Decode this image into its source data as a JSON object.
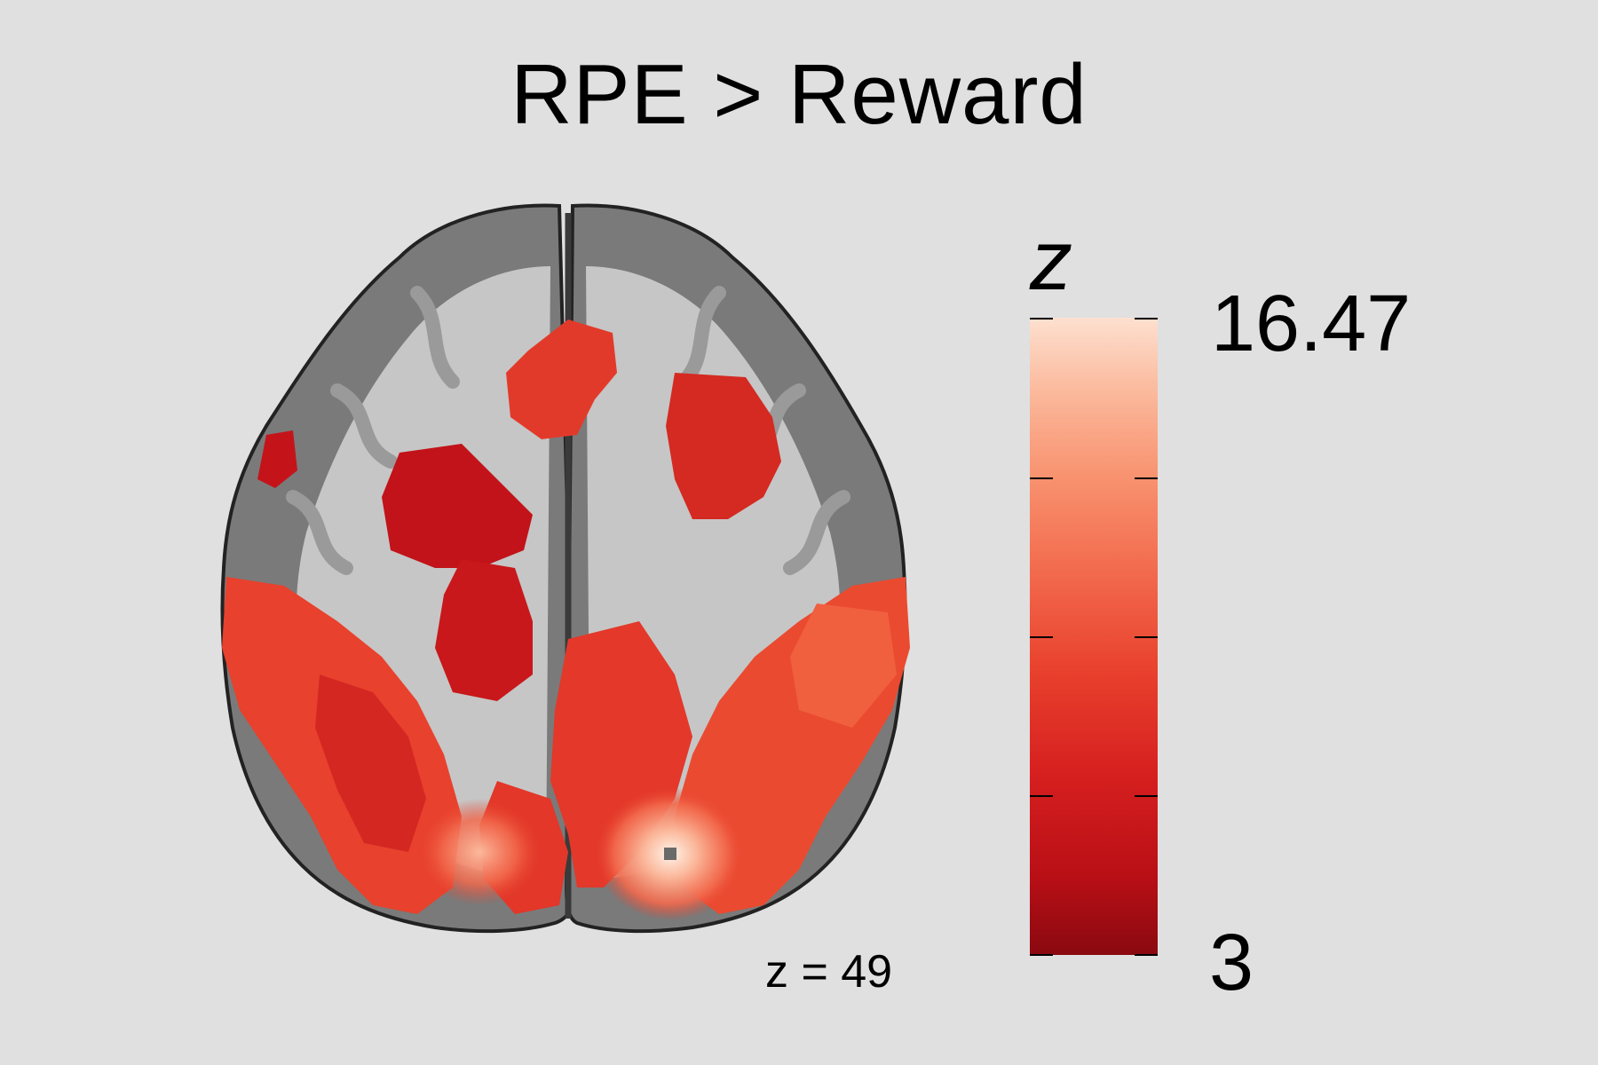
{
  "title": "RPE > Reward",
  "slice_label": "z = 49",
  "colorbar": {
    "variable": "z",
    "max_label": "16.47",
    "min_label": "3",
    "max": 16.47,
    "min": 3,
    "colors": [
      "#8a0910",
      "#d61f1f",
      "#f26a4d",
      "#fde0cf"
    ]
  }
}
